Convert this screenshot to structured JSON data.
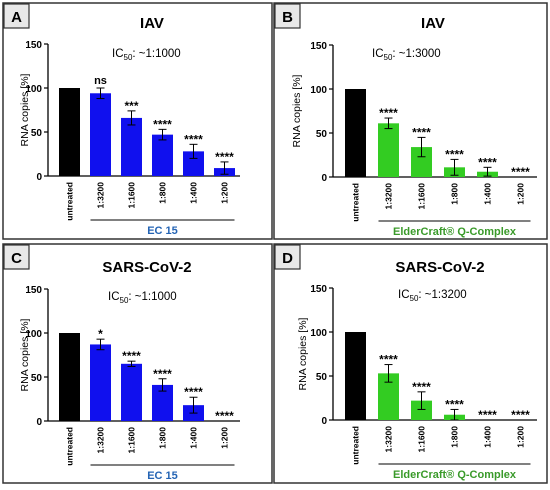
{
  "colors": {
    "panel_border": "#333333",
    "letter_box_fill": "#e8e8e8",
    "untreated": "#000000",
    "ec15": "#1010ee",
    "eldercraft": "#33cc22",
    "ec15_label": "#2464b4",
    "eldercraft_label": "#3a9a2a",
    "axis": "#000000"
  },
  "chart_data": [
    {
      "type": "bar",
      "panel_letter": "A",
      "title": "IAV",
      "ic50_prefix": "IC",
      "ic50_sub": "50",
      "ic50_value": ": ~1:1000",
      "categories": [
        "untreated",
        "1:3200",
        "1:1600",
        "1:800",
        "1:400",
        "1:200"
      ],
      "values": [
        100,
        94,
        66,
        47,
        28,
        9
      ],
      "errors": [
        0,
        6,
        8,
        6,
        8,
        7
      ],
      "significance": [
        "",
        "ns",
        "***",
        "****",
        "****",
        "****"
      ],
      "product_label": "EC 15",
      "product": "ec15",
      "ylabel": "RNA copies [%]",
      "ylim": [
        0,
        150
      ],
      "yticks": [
        "0",
        "50",
        "100",
        "150"
      ]
    },
    {
      "type": "bar",
      "panel_letter": "B",
      "title": "IAV",
      "ic50_prefix": "IC",
      "ic50_sub": "50",
      "ic50_value": ": ~1:3000",
      "categories": [
        "untreated",
        "1:3200",
        "1:1600",
        "1:800",
        "1:400",
        "1:200"
      ],
      "values": [
        100,
        61,
        34,
        11,
        6,
        0
      ],
      "errors": [
        0,
        6,
        11,
        9,
        5,
        0
      ],
      "significance": [
        "",
        "****",
        "****",
        "****",
        "****",
        "****"
      ],
      "product_label": "ElderCraft® Q-Complex",
      "product": "eldercraft",
      "ylabel": "RNA copies [%]",
      "ylim": [
        0,
        150
      ],
      "yticks": [
        "0",
        "50",
        "100",
        "150"
      ]
    },
    {
      "type": "bar",
      "panel_letter": "C",
      "title": "SARS-CoV-2",
      "ic50_prefix": "IC",
      "ic50_sub": "50",
      "ic50_value": ": ~1:1000",
      "categories": [
        "untreated",
        "1:3200",
        "1:1600",
        "1:800",
        "1:400",
        "1:200"
      ],
      "values": [
        100,
        87,
        65,
        41,
        18,
        0
      ],
      "errors": [
        0,
        6,
        3,
        7,
        9,
        0
      ],
      "significance": [
        "",
        "*",
        "****",
        "****",
        "****",
        "****"
      ],
      "product_label": "EC 15",
      "product": "ec15",
      "ylabel": "RNA copies [%]",
      "ylim": [
        0,
        150
      ],
      "yticks": [
        "0",
        "50",
        "100",
        "150"
      ]
    },
    {
      "type": "bar",
      "panel_letter": "D",
      "title": "SARS-CoV-2",
      "ic50_prefix": "IC",
      "ic50_sub": "50",
      "ic50_value": ": ~1:3200",
      "categories": [
        "untreated",
        "1:3200",
        "1:1600",
        "1:800",
        "1:400",
        "1:200"
      ],
      "values": [
        100,
        53,
        22,
        6,
        0,
        0
      ],
      "errors": [
        0,
        10,
        10,
        6,
        0,
        0
      ],
      "significance": [
        "",
        "****",
        "****",
        "****",
        "****",
        "****"
      ],
      "product_label": "ElderCraft® Q-Complex",
      "product": "eldercraft",
      "ylabel": "RNA copies [%]",
      "ylim": [
        0,
        150
      ],
      "yticks": [
        "0",
        "50",
        "100",
        "150"
      ]
    }
  ]
}
